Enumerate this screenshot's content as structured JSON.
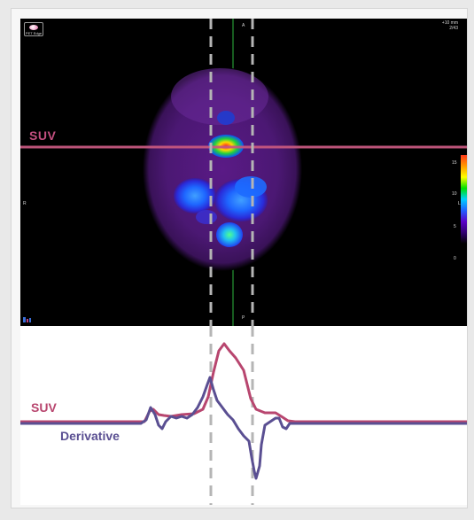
{
  "viewer": {
    "logo_text": "PET Edge",
    "top_right_line1": "+10 mm",
    "top_right_line2": "2/43",
    "orient_top": "A",
    "orient_bottom": "P",
    "orient_left": "R",
    "orient_right": "L",
    "suv_line_label": "SUV",
    "scale_ticks": [
      "15",
      "10",
      "5",
      "0"
    ],
    "ruler_icon": "ruler-icon"
  },
  "plot": {
    "suv_label": "SUV",
    "derivative_label": "Derivative",
    "suv_color": "#b8466f",
    "derivative_color": "#5a4f92"
  },
  "colors": {
    "guide_lines": "#b5b5b5",
    "profile_line": "#c6587f",
    "frame_bg": "#e9e9e9"
  }
}
